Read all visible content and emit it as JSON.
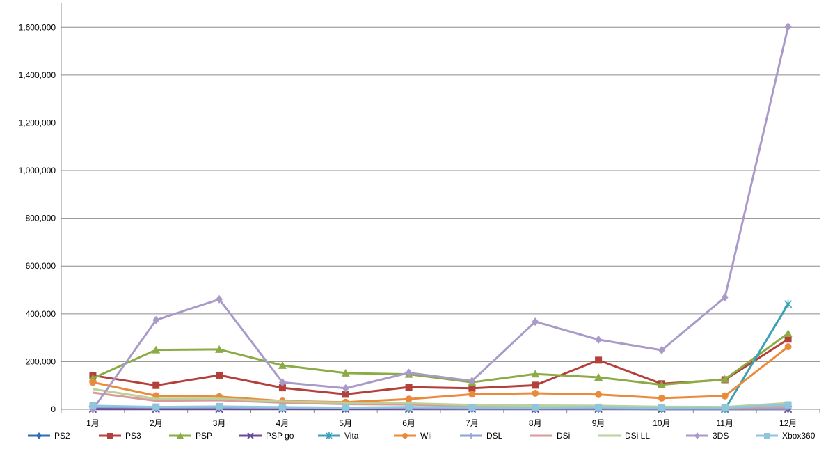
{
  "chart_data": {
    "type": "line",
    "categories": [
      "1月",
      "2月",
      "3月",
      "4月",
      "5月",
      "6月",
      "7月",
      "8月",
      "9月",
      "10月",
      "11月",
      "12月"
    ],
    "ylim": [
      0,
      1700000
    ],
    "yticks": [
      0,
      200000,
      400000,
      600000,
      800000,
      1000000,
      1200000,
      1400000,
      1600000
    ],
    "ytick_labels": [
      "0",
      "200,000",
      "400,000",
      "600,000",
      "800,000",
      "1,000,000",
      "1,200,000",
      "1,400,000",
      "1,600,000"
    ],
    "grid": true,
    "legend_position": "bottom",
    "series": [
      {
        "name": "PS2",
        "color": "#2e6fb5",
        "marker": "diamond",
        "values": [
          5000,
          4000,
          4000,
          3000,
          3000,
          2000,
          2000,
          2000,
          2000,
          1000,
          1000,
          1000
        ]
      },
      {
        "name": "PS3",
        "color": "#b3403a",
        "marker": "square",
        "values": [
          142000,
          100000,
          143000,
          90000,
          63000,
          93000,
          88000,
          101000,
          206000,
          107000,
          124000,
          294000
        ]
      },
      {
        "name": "PSP",
        "color": "#8bab45",
        "marker": "triangle",
        "values": [
          130000,
          249000,
          251000,
          184000,
          152000,
          147000,
          113000,
          148000,
          134000,
          103000,
          126000,
          318000
        ]
      },
      {
        "name": "PSP go",
        "color": "#6c4a96",
        "marker": "x",
        "values": [
          1000,
          1000,
          1000,
          1000,
          1000,
          1000,
          1000,
          1000,
          1000,
          1000,
          1000,
          1000
        ]
      },
      {
        "name": "Vita",
        "color": "#3aa0b6",
        "marker": "asterisk",
        "values": [
          null,
          null,
          null,
          null,
          null,
          null,
          null,
          null,
          null,
          null,
          0,
          441000
        ]
      },
      {
        "name": "Wii",
        "color": "#ea8a3b",
        "marker": "circle",
        "values": [
          113000,
          57000,
          53000,
          35000,
          30000,
          43000,
          63000,
          67000,
          62000,
          47000,
          56000,
          262000
        ]
      },
      {
        "name": "DSL",
        "color": "#8ea3cf",
        "marker": "plus",
        "values": [
          10000,
          8000,
          8000,
          6000,
          5000,
          4000,
          3000,
          3000,
          3000,
          2000,
          2000,
          2000
        ]
      },
      {
        "name": "DSi",
        "color": "#d99a98",
        "marker": "none",
        "values": [
          70000,
          36000,
          38000,
          28000,
          22000,
          20000,
          14000,
          12000,
          10000,
          8000,
          7000,
          10000
        ]
      },
      {
        "name": "DSi LL",
        "color": "#bcd09b",
        "marker": "none",
        "values": [
          85000,
          44000,
          45000,
          33000,
          28000,
          25000,
          18000,
          16000,
          15000,
          11000,
          10000,
          26000
        ]
      },
      {
        "name": "3DS",
        "color": "#a99ac9",
        "marker": "diamond",
        "values": [
          0,
          374000,
          461000,
          113000,
          88000,
          153000,
          119000,
          367000,
          292000,
          248000,
          469000,
          1603000
        ]
      },
      {
        "name": "Xbox360",
        "color": "#8fc6dc",
        "marker": "square",
        "values": [
          15000,
          10000,
          12000,
          9000,
          7000,
          10000,
          8000,
          7000,
          9000,
          6000,
          7000,
          19000
        ]
      }
    ]
  }
}
